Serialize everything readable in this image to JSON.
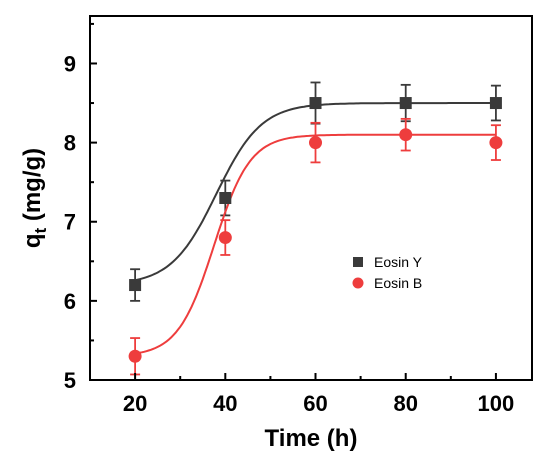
{
  "chart_data": {
    "type": "scatter",
    "xlabel": "Time (h)",
    "ylabel_main": "q",
    "ylabel_sub": "t",
    "ylabel_unit": " (mg/g)",
    "xlim": [
      10,
      108
    ],
    "ylim": [
      5,
      9.6
    ],
    "xticks": [
      20,
      40,
      60,
      80,
      100
    ],
    "yticks": [
      5,
      6,
      7,
      8,
      9
    ],
    "grid": false,
    "legend_position": "middle-right",
    "series": [
      {
        "name": "Eosin Y",
        "marker": "square",
        "color": "#3a3a3a",
        "x": [
          20,
          40,
          60,
          80,
          100
        ],
        "y": [
          6.2,
          7.3,
          8.5,
          8.5,
          8.5
        ],
        "err": [
          0.2,
          0.22,
          0.26,
          0.23,
          0.22
        ],
        "fit": {
          "bottom": 6.2,
          "top": 8.5,
          "x0": 38,
          "k": 5
        }
      },
      {
        "name": "Eosin B",
        "marker": "circle",
        "color": "#ee3d3d",
        "x": [
          20,
          40,
          60,
          80,
          100
        ],
        "y": [
          5.3,
          6.8,
          8.0,
          8.1,
          8.0
        ],
        "err": [
          0.23,
          0.22,
          0.25,
          0.2,
          0.22
        ],
        "fit": {
          "bottom": 5.3,
          "top": 8.1,
          "x0": 37.5,
          "k": 4
        }
      }
    ]
  }
}
